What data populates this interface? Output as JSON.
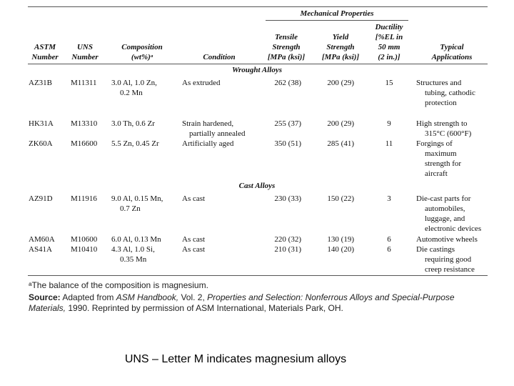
{
  "table": {
    "group_header": "Mechanical Properties",
    "headers": {
      "astm": [
        "ASTM",
        "Number"
      ],
      "uns": [
        "UNS",
        "Number"
      ],
      "composition": [
        "Composition",
        "(wt%)ᵃ"
      ],
      "condition": "Condition",
      "tensile": [
        "Tensile",
        "Strength",
        "[MPa (ksi)]"
      ],
      "yield": [
        "Yield",
        "Strength",
        "[MPa (ksi)]"
      ],
      "ductility": [
        "Ductility",
        "[%EL in",
        "50 mm",
        "(2 in.)]"
      ],
      "applications": [
        "Typical",
        "Applications"
      ]
    },
    "sections": {
      "wrought": "Wrought Alloys",
      "cast": "Cast Alloys"
    },
    "rows": [
      {
        "astm": "AZ31B",
        "uns": "M11311",
        "comp": [
          "3.0 Al, 1.0 Zn,",
          "0.2 Mn"
        ],
        "cond": [
          "As extruded"
        ],
        "tensile": "262 (38)",
        "yield": "200 (29)",
        "duct": "15",
        "app": [
          "Structures and",
          "tubing, cathodic",
          "protection"
        ]
      },
      {
        "astm": "HK31A",
        "uns": "M13310",
        "comp": [
          "3.0 Th, 0.6 Zr"
        ],
        "cond": [
          "Strain hardened,",
          "partially annealed"
        ],
        "tensile": "255 (37)",
        "yield": "200 (29)",
        "duct": "9",
        "app": [
          "High strength to",
          "315°C (600°F)"
        ]
      },
      {
        "astm": "ZK60A",
        "uns": "M16600",
        "comp": [
          "5.5 Zn, 0.45 Zr"
        ],
        "cond": [
          "Artificially aged"
        ],
        "tensile": "350 (51)",
        "yield": "285 (41)",
        "duct": "11",
        "app": [
          "Forgings of",
          "maximum",
          "strength for",
          "aircraft"
        ]
      },
      {
        "astm": "AZ91D",
        "uns": "M11916",
        "comp": [
          "9.0 Al, 0.15 Mn,",
          "0.7 Zn"
        ],
        "cond": [
          "As cast"
        ],
        "tensile": "230 (33)",
        "yield": "150 (22)",
        "duct": "3",
        "app": [
          "Die-cast parts for",
          "automobiles,",
          "luggage, and",
          "electronic devices"
        ]
      },
      {
        "astm": "AM60A",
        "uns": "M10600",
        "comp": [
          "6.0 Al, 0.13 Mn"
        ],
        "cond": [
          "As cast"
        ],
        "tensile": "220 (32)",
        "yield": "130 (19)",
        "duct": "6",
        "app": [
          "Automotive wheels"
        ]
      },
      {
        "astm": "AS41A",
        "uns": "M10410",
        "comp": [
          "4.3 Al, 1.0 Si,",
          "0.35 Mn"
        ],
        "cond": [
          "As cast"
        ],
        "tensile": "210 (31)",
        "yield": "140 (20)",
        "duct": "6",
        "app": [
          "Die castings",
          "requiring good",
          "creep resistance"
        ]
      }
    ]
  },
  "footnote": "ᵃThe balance of the composition is magnesium.",
  "source": {
    "label": "Source:",
    "text_1": " Adapted from ",
    "italic_1": "ASM Handbook,",
    "text_2": " Vol. 2, ",
    "italic_2": "Properties and Selection: Nonferrous Alloys and Special-Purpose",
    "italic_3": "Materials,",
    "text_3": " 1990. Reprinted by permission of ASM International, Materials Park, OH."
  },
  "caption": "UNS – Letter M indicates magnesium alloys"
}
